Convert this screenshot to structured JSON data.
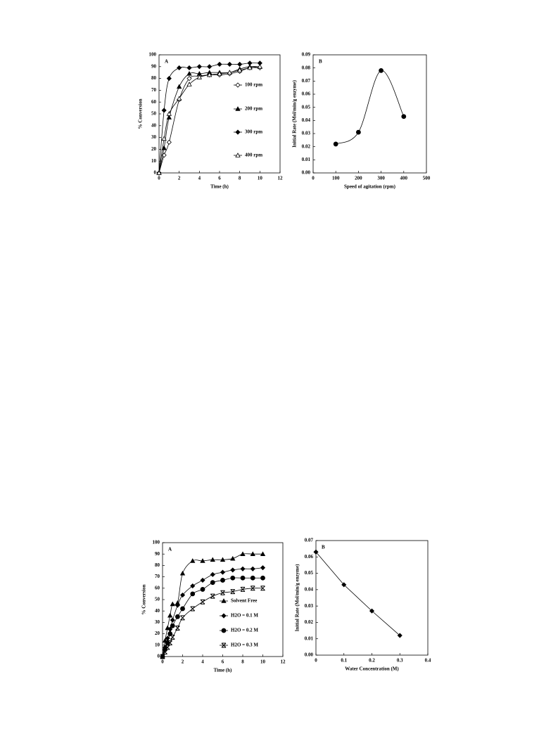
{
  "chart_data": [
    {
      "type": "line",
      "title": "A",
      "x_label": "Time (h)",
      "y_label": "% Conversion",
      "xlim": [
        0,
        12
      ],
      "ylim": [
        0,
        100
      ],
      "xticks": [
        0,
        2,
        4,
        6,
        8,
        10,
        12
      ],
      "yticks": [
        0,
        10,
        20,
        30,
        40,
        50,
        60,
        70,
        80,
        90,
        100
      ],
      "smooth": true,
      "legend": "right",
      "x": [
        0,
        0.5,
        1,
        2,
        3,
        4,
        5,
        6,
        7,
        8,
        9,
        10
      ],
      "series": [
        {
          "name": "100 rpm",
          "color": "#000000",
          "marker": "diamond-open",
          "values": [
            0,
            15,
            26,
            62,
            80,
            82,
            83,
            83,
            84,
            86,
            89,
            89
          ]
        },
        {
          "name": "200 rpm",
          "color": "#000000",
          "marker": "triangle",
          "values": [
            0,
            21,
            47,
            73,
            84,
            84,
            85,
            85,
            85,
            88,
            90,
            90
          ]
        },
        {
          "name": "300 rpm",
          "color": "#000000",
          "marker": "diamond",
          "values": [
            0,
            53,
            80,
            89,
            89,
            90,
            90,
            92,
            92,
            92,
            93,
            93
          ]
        },
        {
          "name": "400 rpm",
          "color": "#000000",
          "marker": "triangle-open",
          "values": [
            0,
            29,
            50,
            63,
            75,
            81,
            83,
            84,
            85,
            87,
            89,
            90
          ]
        }
      ]
    },
    {
      "type": "line",
      "title": "B",
      "x_label": "Speed of agitation (rpm)",
      "y_label": "Initial Rate (Mol/min/g enzyme)",
      "xlim": [
        0,
        500
      ],
      "ylim": [
        0,
        0.09
      ],
      "xticks": [
        0,
        100,
        200,
        300,
        400,
        500
      ],
      "yticks": [
        {
          "value": 0,
          "label": "0.00"
        },
        {
          "value": 0.01,
          "label": "0.01"
        },
        {
          "value": 0.02,
          "label": "0.02"
        },
        {
          "value": 0.03,
          "label": "0.03"
        },
        {
          "value": 0.04,
          "label": "0.04"
        },
        {
          "value": 0.05,
          "label": "0.05"
        },
        {
          "value": 0.06,
          "label": "0.06"
        },
        {
          "value": 0.07,
          "label": "0.07"
        },
        {
          "value": 0.08,
          "label": "0.08"
        },
        {
          "value": 0.09,
          "label": "0.09"
        }
      ],
      "smooth": true,
      "x": [
        100,
        200,
        300,
        400
      ],
      "values": [
        0.022,
        0.031,
        0.078,
        0.043
      ],
      "color": "#000000",
      "marker": "circle"
    },
    {
      "type": "line",
      "title": "A",
      "x_label": "Time (h)",
      "y_label": "% Conversion",
      "xlim": [
        0,
        12
      ],
      "ylim": [
        0,
        100
      ],
      "xticks": [
        0,
        2,
        4,
        6,
        8,
        10,
        12
      ],
      "yticks": [
        0,
        10,
        20,
        30,
        40,
        50,
        60,
        70,
        80,
        90,
        100
      ],
      "smooth": true,
      "legend": "center",
      "x": [
        0,
        0.25,
        0.5,
        0.75,
        1,
        1.5,
        2,
        3,
        4,
        5,
        6,
        7,
        8,
        9,
        10
      ],
      "series": [
        {
          "name": "Solvent Free",
          "color": "#000000",
          "marker": "triangle",
          "values": [
            0,
            14,
            25,
            36,
            46,
            47,
            73,
            84,
            84,
            85,
            85,
            86,
            90,
            90,
            90
          ]
        },
        {
          "name": "H2O = 0.1 M",
          "color": "#000000",
          "marker": "diamond",
          "values": [
            0,
            8,
            16,
            24,
            32,
            45,
            54,
            62,
            67,
            72,
            74,
            76,
            77,
            77,
            78
          ]
        },
        {
          "name": "H2O = 0.2 M",
          "color": "#000000",
          "marker": "circle",
          "values": [
            0,
            6,
            12,
            20,
            27,
            35,
            42,
            55,
            59,
            65,
            67,
            69,
            69,
            69,
            69
          ]
        },
        {
          "name": "H2O = 0.3 M",
          "color": "#000000",
          "marker": "asterisk",
          "values": [
            0,
            4,
            8,
            12,
            17,
            25,
            34,
            42,
            48,
            53,
            56,
            57,
            59,
            60,
            60
          ]
        }
      ]
    },
    {
      "type": "line",
      "title": "B",
      "x_label": "Water Concentration (M)",
      "y_label": "Initial Rate (Mol/min/g enzyme)",
      "xlim": [
        0,
        0.4
      ],
      "ylim": [
        0,
        0.07
      ],
      "xticks": [
        0,
        0.1,
        0.2,
        0.3,
        0.4
      ],
      "yticks": [
        {
          "value": 0,
          "label": "0.00"
        },
        {
          "value": 0.01,
          "label": "0.01"
        },
        {
          "value": 0.02,
          "label": "0.02"
        },
        {
          "value": 0.03,
          "label": "0.03"
        },
        {
          "value": 0.04,
          "label": "0.04"
        },
        {
          "value": 0.05,
          "label": "0.05"
        },
        {
          "value": 0.06,
          "label": "0.06"
        },
        {
          "value": 0.07,
          "label": "0.07"
        }
      ],
      "smooth": false,
      "x": [
        0,
        0.1,
        0.2,
        0.3
      ],
      "values": [
        0.063,
        0.043,
        0.027,
        0.012
      ],
      "color": "#000000",
      "marker": "diamond"
    }
  ]
}
